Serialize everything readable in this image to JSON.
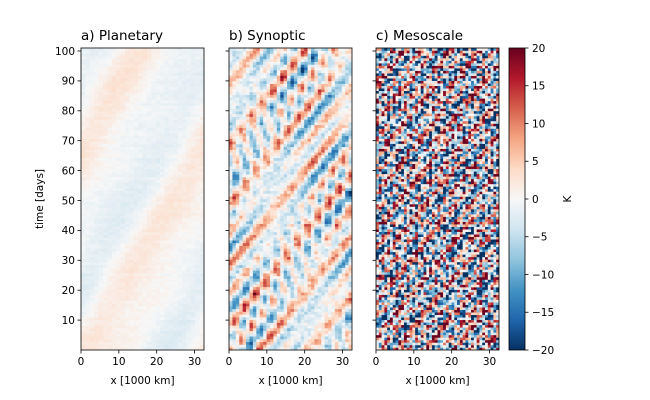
{
  "chart_data": {
    "type": "heatmap",
    "colormap": "RdBu_r",
    "panels": [
      {
        "title": "a) Planetary",
        "xlabel": "x [1000 km]",
        "ylabel": "time [days]",
        "xlim": [
          0,
          32.5
        ],
        "ylim": [
          0,
          101
        ],
        "xticks": [
          0,
          10,
          20,
          30
        ],
        "yticks": [
          10,
          20,
          30,
          40,
          50,
          60,
          70,
          80,
          90,
          100
        ],
        "amplitude_K": 2.5,
        "pattern": "large-scale anomalies of about +-2 K drifting eastward with time (slanted bands)"
      },
      {
        "title": "b) Synoptic",
        "xlabel": "x [1000 km]",
        "ylabel": "",
        "xlim": [
          0,
          32.5
        ],
        "ylim": [
          0,
          101
        ],
        "xticks": [
          0,
          10,
          20,
          30
        ],
        "yticks": [
          10,
          20,
          30,
          40,
          50,
          60,
          70,
          80,
          90,
          100
        ],
        "amplitude_K": 17,
        "pattern": "synoptic wave packets of about +-15 K with tilted phase lines"
      },
      {
        "title": "c) Mesoscale",
        "xlabel": "x [1000 km]",
        "ylabel": "",
        "xlim": [
          0,
          32.5
        ],
        "ylim": [
          0,
          101
        ],
        "xticks": [
          0,
          10,
          20,
          30
        ],
        "yticks": [
          10,
          20,
          30,
          40,
          50,
          60,
          70,
          80,
          90,
          100
        ],
        "amplitude_K": 22,
        "pattern": "noisy small-scale features with slanted streaks, saturating the +-20 K range"
      }
    ],
    "colorbar": {
      "label": "K",
      "vmin": -20,
      "vmax": 20,
      "ticks": [
        -20,
        -15,
        -10,
        -5,
        0,
        5,
        10,
        15,
        20
      ],
      "tick_labels": [
        "−20",
        "−15",
        "−10",
        "−5",
        "0",
        "5",
        "10",
        "15",
        "20"
      ]
    }
  }
}
